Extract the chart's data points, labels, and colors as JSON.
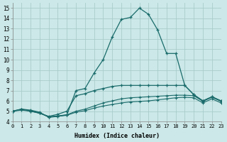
{
  "xlabel": "Humidex (Indice chaleur)",
  "bg_color": "#cce8e8",
  "grid_color": "#aacccc",
  "line_color": "#1a6b6b",
  "xlim": [
    0,
    23
  ],
  "ylim": [
    4,
    15.5
  ],
  "xticks": [
    0,
    1,
    2,
    3,
    4,
    5,
    6,
    7,
    8,
    9,
    10,
    11,
    12,
    13,
    14,
    15,
    16,
    17,
    18,
    19,
    20,
    21,
    22,
    23
  ],
  "yticks": [
    4,
    5,
    6,
    7,
    8,
    9,
    10,
    11,
    12,
    13,
    14,
    15
  ],
  "curve1": [
    5.0,
    5.2,
    5.1,
    4.9,
    4.4,
    4.5,
    4.65,
    7.0,
    7.2,
    8.7,
    10.0,
    12.2,
    13.9,
    14.1,
    15.0,
    14.4,
    12.9,
    10.6,
    10.6,
    7.5,
    6.6,
    6.0,
    6.4,
    6.0
  ],
  "curve2": [
    5.0,
    5.2,
    5.0,
    4.8,
    4.5,
    4.7,
    5.0,
    6.5,
    6.7,
    7.0,
    7.2,
    7.4,
    7.5,
    7.5,
    7.5,
    7.5,
    7.5,
    7.5,
    7.5,
    7.5,
    6.6,
    6.0,
    6.4,
    6.0
  ],
  "curve3": [
    5.0,
    5.15,
    5.05,
    4.85,
    4.45,
    4.55,
    4.65,
    5.0,
    5.2,
    5.5,
    5.8,
    6.0,
    6.2,
    6.3,
    6.35,
    6.4,
    6.45,
    6.5,
    6.55,
    6.55,
    6.5,
    5.95,
    6.35,
    5.95
  ],
  "curve4": [
    5.0,
    5.1,
    5.0,
    4.8,
    4.45,
    4.5,
    4.6,
    4.9,
    5.05,
    5.3,
    5.5,
    5.65,
    5.8,
    5.9,
    5.95,
    6.0,
    6.1,
    6.2,
    6.3,
    6.35,
    6.3,
    5.8,
    6.2,
    5.8
  ]
}
